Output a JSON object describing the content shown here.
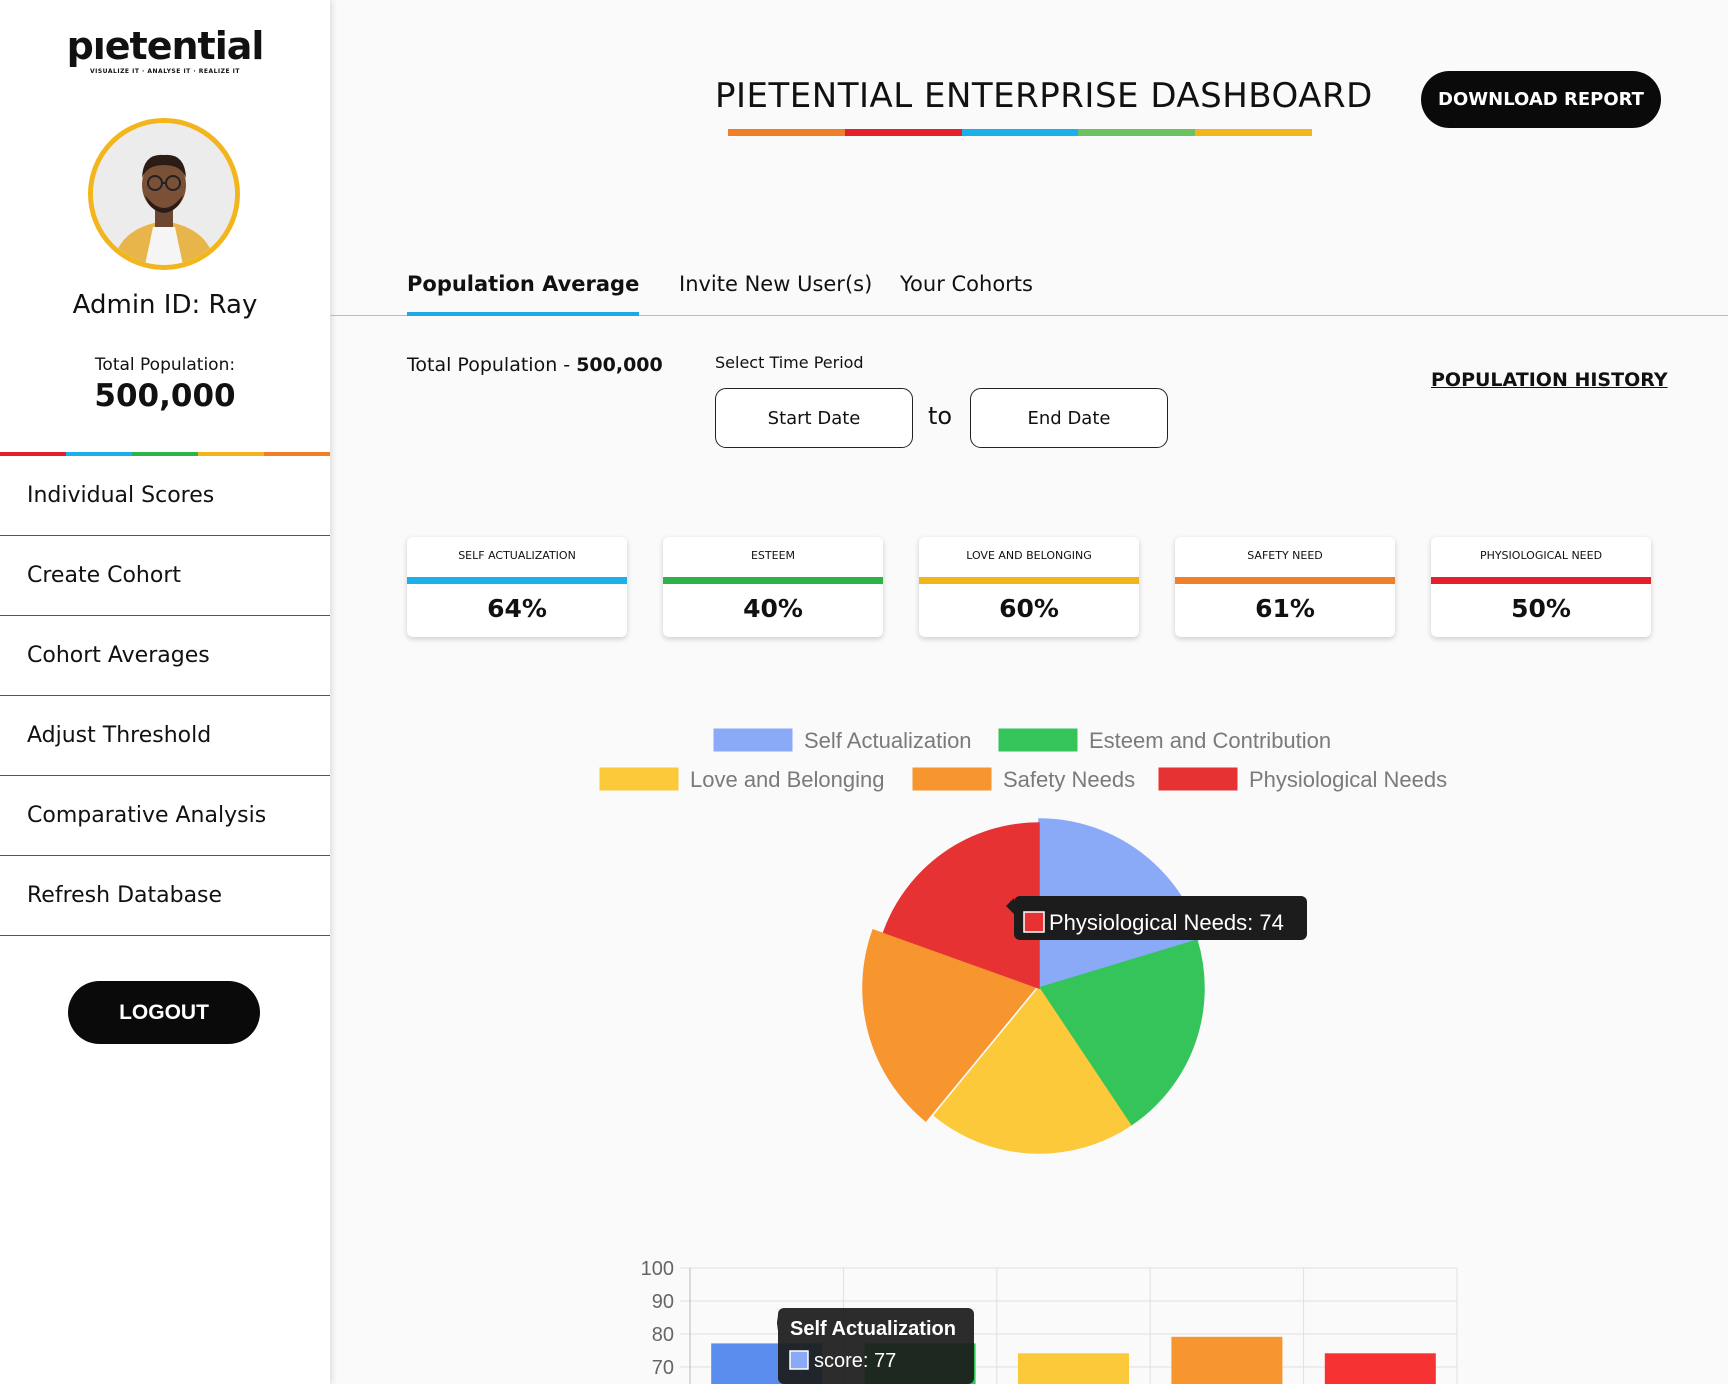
{
  "brand": {
    "name": "pıetential",
    "tagline": "VISUALIZE IT · ANALYSE IT · REALIZE IT"
  },
  "sidebar": {
    "admin": "Admin ID: Ray",
    "total_population_label": "Total Population:",
    "total_population_value": "500,000",
    "nav": [
      "Individual Scores",
      "Create Cohort",
      "Cohort Averages",
      "Adjust Threshold",
      "Comparative Analysis",
      "Refresh Database"
    ],
    "logout": "LOGOUT"
  },
  "header": {
    "title": "PIETENTIAL ENTERPRISE DASHBOARD",
    "download": "DOWNLOAD REPORT"
  },
  "tabs": [
    {
      "label": "Population Average",
      "active": true
    },
    {
      "label": "Invite New User(s)",
      "active": false
    },
    {
      "label": "Your Cohorts",
      "active": false
    }
  ],
  "filters": {
    "total_label": "Total Population -",
    "total_value": "500,000",
    "period_label": "Select Time Period",
    "start_placeholder": "Start Date",
    "to": "to",
    "end_placeholder": "End Date",
    "history_link": "POPULATION HISTORY"
  },
  "cards": [
    {
      "label": "SELF ACTUALIZATION",
      "value": "64%",
      "color": "#1cb0ea"
    },
    {
      "label": "ESTEEM",
      "value": "40%",
      "color": "#2db34a"
    },
    {
      "label": "LOVE AND BELONGING",
      "value": "60%",
      "color": "#f2b51c"
    },
    {
      "label": "SAFETY NEED",
      "value": "61%",
      "color": "#f07f2a"
    },
    {
      "label": "PHYSIOLOGICAL NEED",
      "value": "50%",
      "color": "#e4202f"
    }
  ],
  "colors": {
    "rainbow": [
      "#e4202f",
      "#1cb0ea",
      "#2db34a",
      "#f2b51c",
      "#f07f2a"
    ],
    "title_rainbow": [
      "#f07f2a",
      "#e4202f",
      "#1cb0ea",
      "#6cc160",
      "#f2b51c"
    ]
  },
  "chart_data": [
    {
      "type": "pie",
      "legend": [
        "Self Actualization",
        "Esteem and Contribution",
        "Love and Belonging",
        "Safety Needs",
        "Physiological Needs"
      ],
      "values": [
        77,
        77,
        77,
        74,
        74
      ],
      "colors": [
        "#8aaaf8",
        "#34c45a",
        "#fbc93a",
        "#f7952f",
        "#e63232"
      ],
      "tooltip": {
        "label": "Physiological Needs: 74"
      }
    },
    {
      "type": "bar",
      "categories": [
        "Self Actualization",
        "Esteem and Contribution",
        "Love and Belonging",
        "Safety Needs",
        "Physiological Needs"
      ],
      "values": [
        77,
        77,
        74,
        79,
        74
      ],
      "colors": [
        "#5b8def",
        "#34c45a",
        "#fbc93a",
        "#f7952f",
        "#f73232"
      ],
      "y_ticks": [
        "100",
        "90",
        "80",
        "70"
      ],
      "ylim": [
        60,
        100
      ],
      "tooltip": {
        "title": "Self Actualization",
        "label": "score: 77"
      }
    }
  ]
}
